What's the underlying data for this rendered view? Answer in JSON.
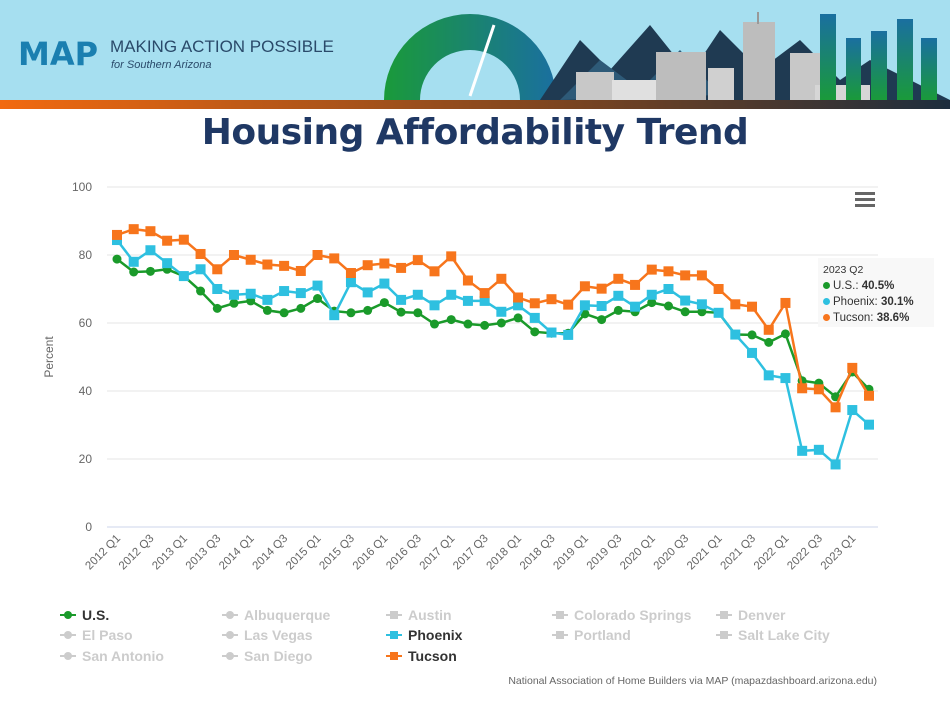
{
  "header": {
    "logo_text": "MAP",
    "org_name": "MAKING ACTION POSSIBLE",
    "org_sub": "for Southern Arizona"
  },
  "colors": {
    "us": "#1a9a2a",
    "phoenix": "#2ec0e0",
    "tucson": "#f7751c",
    "hidden": "#cccccc",
    "title": "#1f3864"
  },
  "chart_data": {
    "type": "line",
    "title": "Housing Affordability Trend",
    "ylabel": "Percent",
    "xlabel": "",
    "ylim": [
      0,
      100
    ],
    "yticks": [
      "0",
      "20",
      "40",
      "60",
      "80",
      "100"
    ],
    "grid": true,
    "x": [
      "2012 Q1",
      "2012 Q2",
      "2012 Q3",
      "2012 Q4",
      "2013 Q1",
      "2013 Q2",
      "2013 Q3",
      "2013 Q4",
      "2014 Q1",
      "2014 Q2",
      "2014 Q3",
      "2014 Q4",
      "2015 Q1",
      "2015 Q2",
      "2015 Q3",
      "2015 Q4",
      "2016 Q1",
      "2016 Q2",
      "2016 Q3",
      "2016 Q4",
      "2017 Q1",
      "2017 Q2",
      "2017 Q3",
      "2017 Q4",
      "2018 Q1",
      "2018 Q2",
      "2018 Q3",
      "2018 Q4",
      "2019 Q1",
      "2019 Q2",
      "2019 Q3",
      "2019 Q4",
      "2020 Q1",
      "2020 Q2",
      "2020 Q3",
      "2020 Q4",
      "2021 Q1",
      "2021 Q2",
      "2021 Q3",
      "2021 Q4",
      "2022 Q1",
      "2022 Q2",
      "2022 Q3",
      "2022 Q4",
      "2023 Q1",
      "2023 Q2"
    ],
    "xtick_labels": [
      "2012 Q1",
      "2012 Q3",
      "2013 Q1",
      "2013 Q3",
      "2014 Q1",
      "2014 Q3",
      "2015 Q1",
      "2015 Q3",
      "2016 Q1",
      "2016 Q3",
      "2017 Q1",
      "2017 Q3",
      "2018 Q1",
      "2018 Q3",
      "2019 Q1",
      "2019 Q3",
      "2020 Q1",
      "2020 Q3",
      "2021 Q1",
      "2021 Q3",
      "2022 Q1",
      "2022 Q3",
      "2023 Q1"
    ],
    "series": [
      {
        "name": "U.S.",
        "key": "us",
        "marker": "circle",
        "values": [
          78.8,
          75,
          75.2,
          75.8,
          73.8,
          69.4,
          64.3,
          65.8,
          66.5,
          63.7,
          63,
          64.3,
          67.2,
          63.5,
          63,
          63.7,
          66,
          63.2,
          63,
          59.7,
          61,
          59.7,
          59.3,
          60,
          61.5,
          57.4,
          57,
          57,
          62.7,
          61,
          63.7,
          63.3,
          66,
          65,
          63.3,
          63.3,
          63,
          56.6,
          56.5,
          54.3,
          56.8,
          43,
          42.3,
          38.3,
          45.6,
          40.5
        ]
      },
      {
        "name": "Phoenix",
        "key": "phoenix",
        "marker": "square",
        "values": [
          84.4,
          78,
          81.4,
          77.6,
          73.8,
          75.8,
          70,
          68.3,
          68.6,
          66.8,
          69.4,
          68.8,
          71,
          62.3,
          72,
          69,
          71.6,
          66.8,
          68.3,
          65.2,
          68.3,
          66.5,
          66.5,
          63.3,
          65.2,
          61.5,
          57.2,
          56.5,
          65.2,
          65,
          68,
          64.8,
          68.3,
          70,
          66.6,
          65.5,
          63,
          56.6,
          51.2,
          44.6,
          43.8,
          22.4,
          22.7,
          18.4,
          34.4,
          30.1
        ]
      },
      {
        "name": "Tucson",
        "key": "tucson",
        "marker": "square",
        "values": [
          85.9,
          87.6,
          87,
          84.2,
          84.5,
          80.3,
          75.8,
          80,
          78.6,
          77.2,
          76.8,
          75.3,
          80,
          79,
          74.7,
          77,
          77.5,
          76.2,
          78.5,
          75.2,
          79.6,
          72.5,
          68.8,
          73,
          67.5,
          65.8,
          67,
          65.4,
          70.8,
          70.1,
          73,
          71.2,
          75.7,
          75.2,
          74,
          74,
          70,
          65.5,
          64.8,
          58,
          65.9,
          40.8,
          40.5,
          35.2,
          46.8,
          38.6
        ]
      }
    ],
    "legend_placement": "bottom",
    "legend": [
      {
        "name": "U.S.",
        "visible": true,
        "key": "us"
      },
      {
        "name": "Albuquerque",
        "visible": false
      },
      {
        "name": "Austin",
        "visible": false
      },
      {
        "name": "Colorado Springs",
        "visible": false
      },
      {
        "name": "Denver",
        "visible": false
      },
      {
        "name": "El Paso",
        "visible": false
      },
      {
        "name": "Las Vegas",
        "visible": false
      },
      {
        "name": "Phoenix",
        "visible": true,
        "key": "phoenix"
      },
      {
        "name": "Portland",
        "visible": false
      },
      {
        "name": "Salt Lake City",
        "visible": false
      },
      {
        "name": "San Antonio",
        "visible": false
      },
      {
        "name": "San Diego",
        "visible": false
      },
      {
        "name": "Tucson",
        "visible": true,
        "key": "tucson"
      }
    ],
    "tooltip": {
      "header": "2023 Q2",
      "rows": [
        {
          "label": "U.S.:",
          "value": "40.5%"
        },
        {
          "label": "Phoenix:",
          "value": "30.1%"
        },
        {
          "label": "Tucson:",
          "value": "38.6%"
        }
      ]
    },
    "source": "National Association of Home Builders via MAP (mapazdashboard.arizona.edu)"
  }
}
